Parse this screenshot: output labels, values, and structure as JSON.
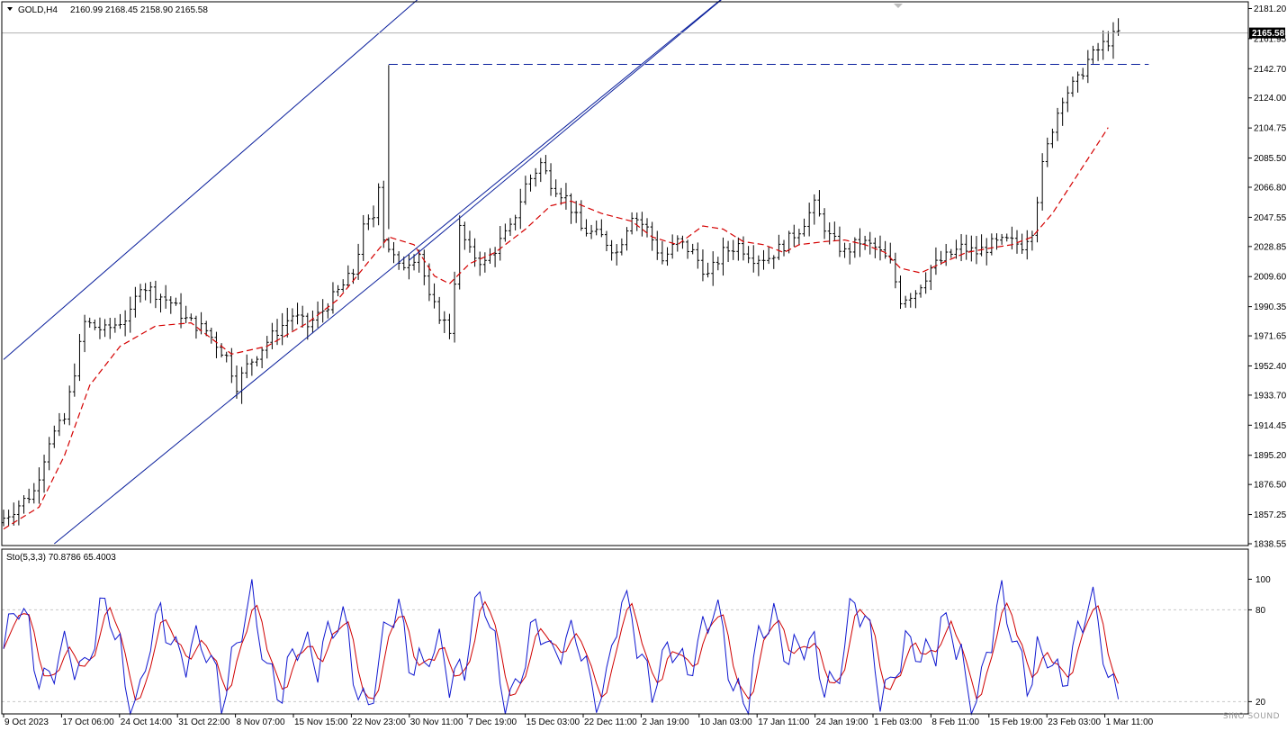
{
  "window": {
    "symbol_label": "GOLD,H4",
    "ohlc_label": "2160.99 2168.45 2158.90 2165.58",
    "stoch_label": "Sto(5,3,3) 70.8786 65.4003",
    "watermark": "SINO SOUND"
  },
  "colors": {
    "background": "#ffffff",
    "candles": "#000000",
    "ma": "#d40000",
    "channel": "#0a1f9c",
    "resistance": "#0a1f9c",
    "stoch_main": "#1018d0",
    "stoch_signal": "#d00000",
    "grid": "#c8c8c8"
  },
  "chart_data": [
    {
      "type": "candlestick",
      "title": "GOLD,H4",
      "current_price": 2165.58,
      "ohlc": {
        "open": 2160.99,
        "high": 2168.45,
        "low": 2158.9,
        "close": 2165.58
      },
      "ylim": [
        1838.55,
        2181.2
      ],
      "y_ticks": [
        "2181.20",
        "2161.95",
        "2142.70",
        "2124.00",
        "2104.75",
        "2085.50",
        "2066.80",
        "2047.55",
        "2028.85",
        "2009.60",
        "1990.35",
        "1971.65",
        "1952.40",
        "1933.70",
        "1914.45",
        "1895.20",
        "1876.50",
        "1857.25",
        "1838.55"
      ],
      "x_ticks": [
        "9 Oct 2023",
        "17 Oct 06:00",
        "24 Oct 14:00",
        "31 Oct 22:00",
        "8 Nov 07:00",
        "15 Nov 15:00",
        "22 Nov 23:00",
        "30 Nov 11:00",
        "7 Dec 19:00",
        "15 Dec 03:00",
        "22 Dec 11:00",
        "2 Jan 19:00",
        "10 Jan 03:00",
        "17 Jan 11:00",
        "24 Jan 19:00",
        "1 Feb 03:00",
        "8 Feb 11:00",
        "15 Feb 19:00",
        "23 Feb 03:00",
        "1 Mar 11:00"
      ],
      "close_path": [
        [
          0,
          1855
        ],
        [
          6,
          1872
        ],
        [
          9,
          1905
        ],
        [
          12,
          1918
        ],
        [
          15,
          1965
        ],
        [
          16,
          1980
        ],
        [
          20,
          1975
        ],
        [
          25,
          1985
        ],
        [
          27,
          2005
        ],
        [
          33,
          1993
        ],
        [
          36,
          1982
        ],
        [
          40,
          1975
        ],
        [
          44,
          1958
        ],
        [
          46,
          1940
        ],
        [
          48,
          1952
        ],
        [
          52,
          1968
        ],
        [
          54,
          1975
        ],
        [
          57,
          1985
        ],
        [
          60,
          1978
        ],
        [
          63,
          1988
        ],
        [
          66,
          2000
        ],
        [
          69,
          2012
        ],
        [
          71,
          2040
        ],
        [
          73,
          2048
        ],
        [
          74,
          2070
        ],
        [
          75,
          2035
        ],
        [
          78,
          2015
        ],
        [
          82,
          2025
        ],
        [
          84,
          1995
        ],
        [
          86,
          1985
        ],
        [
          88,
          1975
        ],
        [
          90,
          2040
        ],
        [
          92,
          2025
        ],
        [
          95,
          2018
        ],
        [
          98,
          2032
        ],
        [
          100,
          2040
        ],
        [
          103,
          2068
        ],
        [
          106,
          2082
        ],
        [
          108,
          2070
        ],
        [
          111,
          2060
        ],
        [
          114,
          2040
        ],
        [
          118,
          2035
        ],
        [
          121,
          2025
        ],
        [
          124,
          2050
        ],
        [
          127,
          2040
        ],
        [
          130,
          2020
        ],
        [
          133,
          2032
        ],
        [
          136,
          2025
        ],
        [
          139,
          2010
        ],
        [
          142,
          2025
        ],
        [
          145,
          2030
        ],
        [
          148,
          2022
        ],
        [
          151,
          2022
        ],
        [
          154,
          2030
        ],
        [
          157,
          2040
        ],
        [
          160,
          2055
        ],
        [
          163,
          2035
        ],
        [
          166,
          2025
        ],
        [
          169,
          2032
        ],
        [
          172,
          2028
        ],
        [
          175,
          2018
        ],
        [
          177,
          1995
        ],
        [
          180,
          2000
        ],
        [
          183,
          2015
        ],
        [
          186,
          2022
        ],
        [
          189,
          2028
        ],
        [
          192,
          2025
        ],
        [
          195,
          2030
        ],
        [
          198,
          2032
        ],
        [
          201,
          2030
        ],
        [
          203,
          2040
        ],
        [
          205,
          2080
        ],
        [
          207,
          2105
        ],
        [
          209,
          2125
        ],
        [
          212,
          2135
        ],
        [
          214,
          2148
        ],
        [
          217,
          2158
        ],
        [
          220,
          2165.58
        ]
      ],
      "ma_path": [
        [
          0,
          1848
        ],
        [
          7,
          1862
        ],
        [
          12,
          1895
        ],
        [
          17,
          1940
        ],
        [
          23,
          1965
        ],
        [
          30,
          1978
        ],
        [
          37,
          1980
        ],
        [
          45,
          1960
        ],
        [
          52,
          1965
        ],
        [
          60,
          1980
        ],
        [
          66,
          1995
        ],
        [
          71,
          2015
        ],
        [
          76,
          2035
        ],
        [
          81,
          2030
        ],
        [
          85,
          2010
        ],
        [
          88,
          2005
        ],
        [
          92,
          2018
        ],
        [
          97,
          2025
        ],
        [
          103,
          2040
        ],
        [
          108,
          2055
        ],
        [
          112,
          2058
        ],
        [
          118,
          2050
        ],
        [
          124,
          2045
        ],
        [
          128,
          2035
        ],
        [
          133,
          2030
        ],
        [
          138,
          2042
        ],
        [
          142,
          2040
        ],
        [
          146,
          2032
        ],
        [
          150,
          2030
        ],
        [
          154,
          2025
        ],
        [
          157,
          2030
        ],
        [
          162,
          2032
        ],
        [
          166,
          2033
        ],
        [
          170,
          2030
        ],
        [
          174,
          2025
        ],
        [
          177,
          2015
        ],
        [
          181,
          2012
        ],
        [
          185,
          2018
        ],
        [
          190,
          2025
        ],
        [
          195,
          2028
        ],
        [
          199,
          2030
        ],
        [
          203,
          2035
        ],
        [
          207,
          2050
        ],
        [
          211,
          2070
        ],
        [
          215,
          2090
        ],
        [
          218,
          2105
        ]
      ],
      "channel_upper": [
        [
          0,
          1956.5
        ],
        [
          92,
          2216
        ]
      ],
      "channel_middle": [
        [
          80,
          2020
        ],
        [
          148,
          2204
        ]
      ],
      "channel_lower": [
        [
          10,
          1838.55
        ],
        [
          148,
          2204
        ]
      ],
      "resistance_level": 2145.5,
      "resistance_x": [
        76,
        226
      ]
    },
    {
      "type": "line",
      "title": "Sto(5,3,3) 70.8786 65.4003",
      "ylim": [
        0,
        100
      ],
      "y_ticks": [
        "100",
        "80",
        "20"
      ],
      "levels": [
        80,
        20
      ],
      "series": [
        {
          "name": "Sto(5,3,3) 70.8786",
          "values": []
        },
        {
          "name": "Sto(5,3,3) 65.4003",
          "values": []
        }
      ]
    }
  ]
}
